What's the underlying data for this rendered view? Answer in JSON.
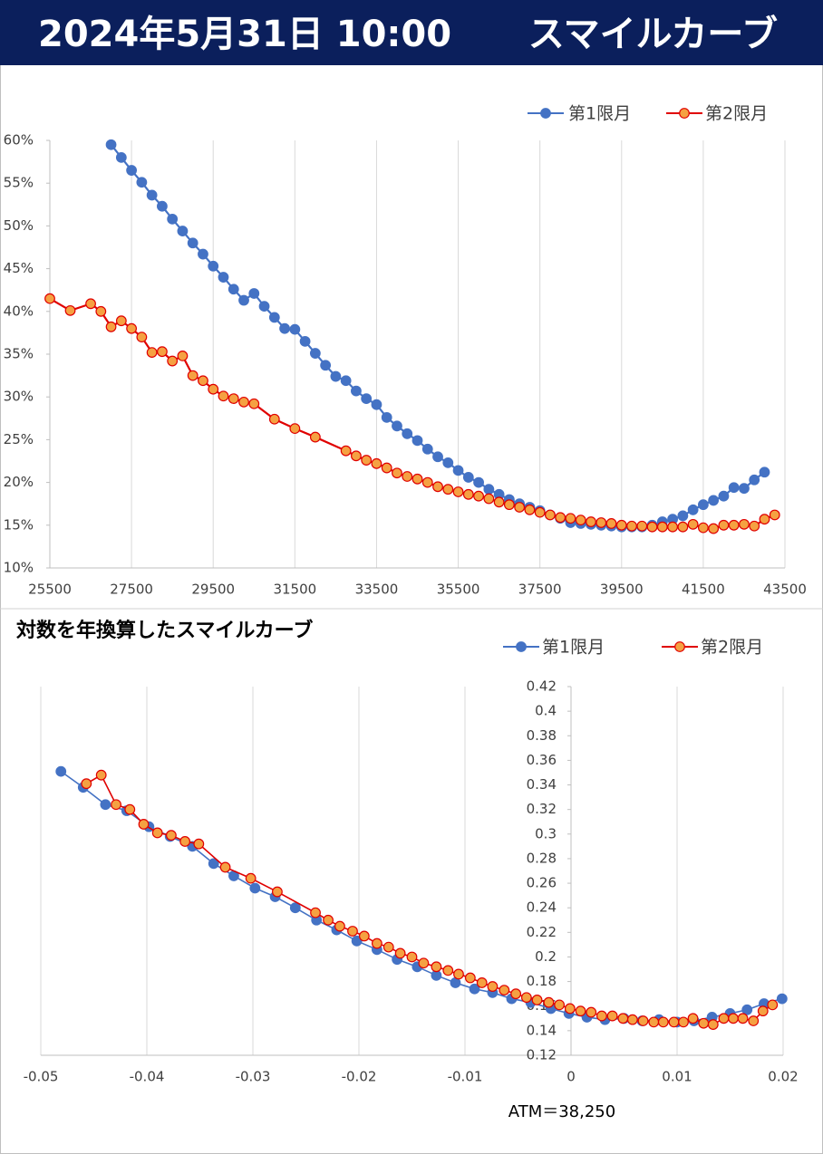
{
  "header": {
    "date": "2024年5月31日 10:00",
    "title": "スマイルカーブ"
  },
  "chart_data": [
    {
      "type": "line",
      "xlim": [
        25500,
        43500
      ],
      "xticks": [
        25500,
        27500,
        29500,
        31500,
        33500,
        35500,
        37500,
        39500,
        41500,
        43500
      ],
      "ylim": [
        10,
        60
      ],
      "yticks": [
        {
          "value": 10,
          "label": "10%"
        },
        {
          "value": 15,
          "label": "15%"
        },
        {
          "value": 20,
          "label": "20%"
        },
        {
          "value": 25,
          "label": "25%"
        },
        {
          "value": 30,
          "label": "30%"
        },
        {
          "value": 35,
          "label": "35%"
        },
        {
          "value": 40,
          "label": "40%"
        },
        {
          "value": 45,
          "label": "45%"
        },
        {
          "value": 50,
          "label": "50%"
        },
        {
          "value": 55,
          "label": "55%"
        },
        {
          "value": 60,
          "label": "60%"
        }
      ],
      "grid": true,
      "legend": "top-right",
      "series": [
        {
          "name": "第1限月",
          "color": "#4472c4",
          "marker_fill": "#4472c4",
          "x": [
            27000,
            27250,
            27500,
            27750,
            28000,
            28250,
            28500,
            28750,
            29000,
            29250,
            29500,
            29750,
            30000,
            30250,
            30500,
            30750,
            31000,
            31250,
            31500,
            31750,
            32000,
            32250,
            32500,
            32750,
            33000,
            33250,
            33500,
            33750,
            34000,
            34250,
            34500,
            34750,
            35000,
            35250,
            35500,
            35750,
            36000,
            36250,
            36500,
            36750,
            37000,
            37250,
            37500,
            37750,
            38000,
            38250,
            38500,
            38750,
            39000,
            39250,
            39500,
            39750,
            40000,
            40250,
            40500,
            40750,
            41000,
            41250,
            41500,
            41750,
            42000,
            42250,
            42500,
            42750,
            43000
          ],
          "values": [
            59.5,
            58.0,
            56.5,
            55.1,
            53.6,
            52.3,
            50.8,
            49.4,
            48.0,
            46.7,
            45.3,
            44.0,
            42.6,
            41.3,
            42.1,
            40.6,
            39.3,
            38.0,
            37.9,
            36.5,
            35.1,
            33.7,
            32.4,
            31.9,
            30.7,
            29.8,
            29.1,
            27.6,
            26.6,
            25.7,
            24.9,
            23.9,
            23.0,
            22.3,
            21.4,
            20.6,
            20.0,
            19.2,
            18.6,
            18.0,
            17.5,
            17.1,
            16.7,
            16.2,
            15.8,
            15.3,
            15.2,
            15.1,
            15.0,
            14.9,
            14.8,
            14.8,
            14.8,
            15.0,
            15.4,
            15.7,
            16.1,
            16.8,
            17.4,
            17.9,
            18.4,
            19.4,
            19.3,
            20.3,
            21.2
          ]
        },
        {
          "name": "第2限月",
          "color": "#e00000",
          "marker_fill": "#f5a142",
          "x": [
            25500,
            26000,
            26500,
            26750,
            27000,
            27250,
            27500,
            27750,
            28000,
            28250,
            28500,
            28750,
            29000,
            29250,
            29500,
            29750,
            30000,
            30250,
            30500,
            31000,
            31500,
            32000,
            32750,
            33000,
            33250,
            33500,
            33750,
            34000,
            34250,
            34500,
            34750,
            35000,
            35250,
            35500,
            35750,
            36000,
            36250,
            36500,
            36750,
            37000,
            37250,
            37500,
            37750,
            38000,
            38250,
            38500,
            38750,
            39000,
            39250,
            39500,
            39750,
            40000,
            40250,
            40500,
            40750,
            41000,
            41250,
            41500,
            41750,
            42000,
            42250,
            42500,
            42750,
            43000,
            43250
          ],
          "values": [
            41.5,
            40.1,
            40.9,
            40.0,
            38.2,
            38.9,
            38.0,
            37.0,
            35.2,
            35.3,
            34.2,
            34.8,
            32.5,
            31.9,
            30.9,
            30.1,
            29.8,
            29.4,
            29.2,
            27.4,
            26.3,
            25.3,
            23.7,
            23.1,
            22.6,
            22.2,
            21.7,
            21.1,
            20.7,
            20.4,
            20.0,
            19.5,
            19.2,
            18.9,
            18.6,
            18.4,
            18.1,
            17.7,
            17.4,
            17.1,
            16.8,
            16.5,
            16.2,
            15.9,
            15.8,
            15.6,
            15.4,
            15.3,
            15.2,
            15.0,
            14.9,
            14.9,
            14.8,
            14.8,
            14.8,
            14.8,
            15.1,
            14.7,
            14.6,
            15.0,
            15.0,
            15.1,
            14.9,
            15.7,
            16.2
          ]
        }
      ]
    },
    {
      "type": "line",
      "title": "対数を年換算したスマイルカーブ",
      "annotation": "ATM＝38,250",
      "xlim": [
        -0.05,
        0.02
      ],
      "xticks": [
        -0.05,
        -0.04,
        -0.03,
        -0.02,
        -0.01,
        0,
        0.01,
        0.02
      ],
      "ylim": [
        0.12,
        0.42
      ],
      "yticks": [
        0.12,
        0.14,
        0.16,
        0.18,
        0.2,
        0.22,
        0.24,
        0.26,
        0.28,
        0.3,
        0.32,
        0.34,
        0.36,
        0.38,
        0.4,
        0.42
      ],
      "grid": true,
      "legend": "top-right",
      "series": [
        {
          "name": "第1限月",
          "color": "#4472c4",
          "marker_fill": "#4472c4",
          "x": [
            -0.0481,
            -0.046,
            -0.0439,
            -0.0419,
            -0.0398,
            -0.0378,
            -0.0357,
            -0.0337,
            -0.0318,
            -0.0298,
            -0.0279,
            -0.026,
            -0.024,
            -0.0221,
            -0.0202,
            -0.0183,
            -0.0164,
            -0.0145,
            -0.0127,
            -0.0109,
            -0.0091,
            -0.0074,
            -0.0056,
            -0.0038,
            -0.0019,
            -0.0002,
            0.0015,
            0.0032,
            0.005,
            0.0067,
            0.0083,
            0.01,
            0.0116,
            0.0133,
            0.015,
            0.0166,
            0.0182,
            0.0199
          ],
          "values": [
            0.351,
            0.338,
            0.324,
            0.319,
            0.306,
            0.298,
            0.29,
            0.276,
            0.266,
            0.256,
            0.249,
            0.24,
            0.23,
            0.222,
            0.213,
            0.206,
            0.198,
            0.192,
            0.185,
            0.179,
            0.174,
            0.171,
            0.166,
            0.163,
            0.158,
            0.154,
            0.151,
            0.149,
            0.15,
            0.148,
            0.149,
            0.147,
            0.148,
            0.151,
            0.154,
            0.157,
            0.162,
            0.166
          ]
        },
        {
          "name": "第2限月",
          "color": "#e00000",
          "marker_fill": "#f5a142",
          "x": [
            -0.0457,
            -0.0443,
            -0.0429,
            -0.0416,
            -0.0403,
            -0.039,
            -0.0377,
            -0.0364,
            -0.0351,
            -0.0326,
            -0.0302,
            -0.0277,
            -0.0241,
            -0.0229,
            -0.0218,
            -0.0206,
            -0.0195,
            -0.0183,
            -0.0172,
            -0.0161,
            -0.015,
            -0.0139,
            -0.0127,
            -0.0116,
            -0.0106,
            -0.0095,
            -0.0084,
            -0.0074,
            -0.0063,
            -0.0052,
            -0.0042,
            -0.0032,
            -0.0021,
            -0.0011,
            -0.0001,
            0.0009,
            0.0019,
            0.0029,
            0.0039,
            0.0049,
            0.0058,
            0.0068,
            0.0078,
            0.0087,
            0.0097,
            0.0106,
            0.0115,
            0.0125,
            0.0134,
            0.0144,
            0.0153,
            0.0162,
            0.0172,
            0.0181,
            0.019
          ],
          "values": [
            0.341,
            0.348,
            0.324,
            0.32,
            0.308,
            0.301,
            0.299,
            0.294,
            0.292,
            0.273,
            0.264,
            0.253,
            0.236,
            0.23,
            0.225,
            0.221,
            0.217,
            0.211,
            0.208,
            0.203,
            0.2,
            0.195,
            0.192,
            0.189,
            0.186,
            0.183,
            0.179,
            0.176,
            0.173,
            0.17,
            0.167,
            0.165,
            0.163,
            0.161,
            0.158,
            0.156,
            0.155,
            0.152,
            0.152,
            0.15,
            0.149,
            0.148,
            0.147,
            0.147,
            0.147,
            0.147,
            0.15,
            0.146,
            0.145,
            0.15,
            0.15,
            0.15,
            0.148,
            0.156,
            0.161
          ]
        }
      ]
    }
  ]
}
